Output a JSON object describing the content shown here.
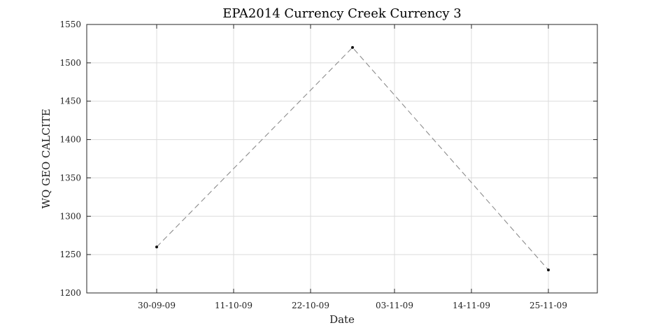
{
  "chart_data": {
    "type": "line",
    "title": "EPA2014 Currency Creek Currency 3",
    "xlabel": "Date",
    "ylabel": "WQ GEO CALCITE",
    "x_axis_type": "date",
    "x_ticks": [
      "2009-09-30",
      "2009-10-11",
      "2009-10-22",
      "2009-11-03",
      "2009-11-14",
      "2009-11-25"
    ],
    "x_tick_labels": [
      "30-09-09",
      "11-10-09",
      "22-10-09",
      "03-11-09",
      "14-11-09",
      "25-11-09"
    ],
    "xlim": [
      "2009-09-20",
      "2009-12-02"
    ],
    "y_ticks": [
      1200,
      1250,
      1300,
      1350,
      1400,
      1450,
      1500,
      1550
    ],
    "ylim": [
      1200,
      1550
    ],
    "grid": true,
    "series": [
      {
        "color": "#8c8c8c",
        "line_style": "dashed",
        "marker_color": "#111111",
        "points": [
          {
            "x": "2009-09-30",
            "y": 1260
          },
          {
            "x": "2009-10-28",
            "y": 1520
          },
          {
            "x": "2009-11-25",
            "y": 1230
          }
        ]
      }
    ]
  }
}
